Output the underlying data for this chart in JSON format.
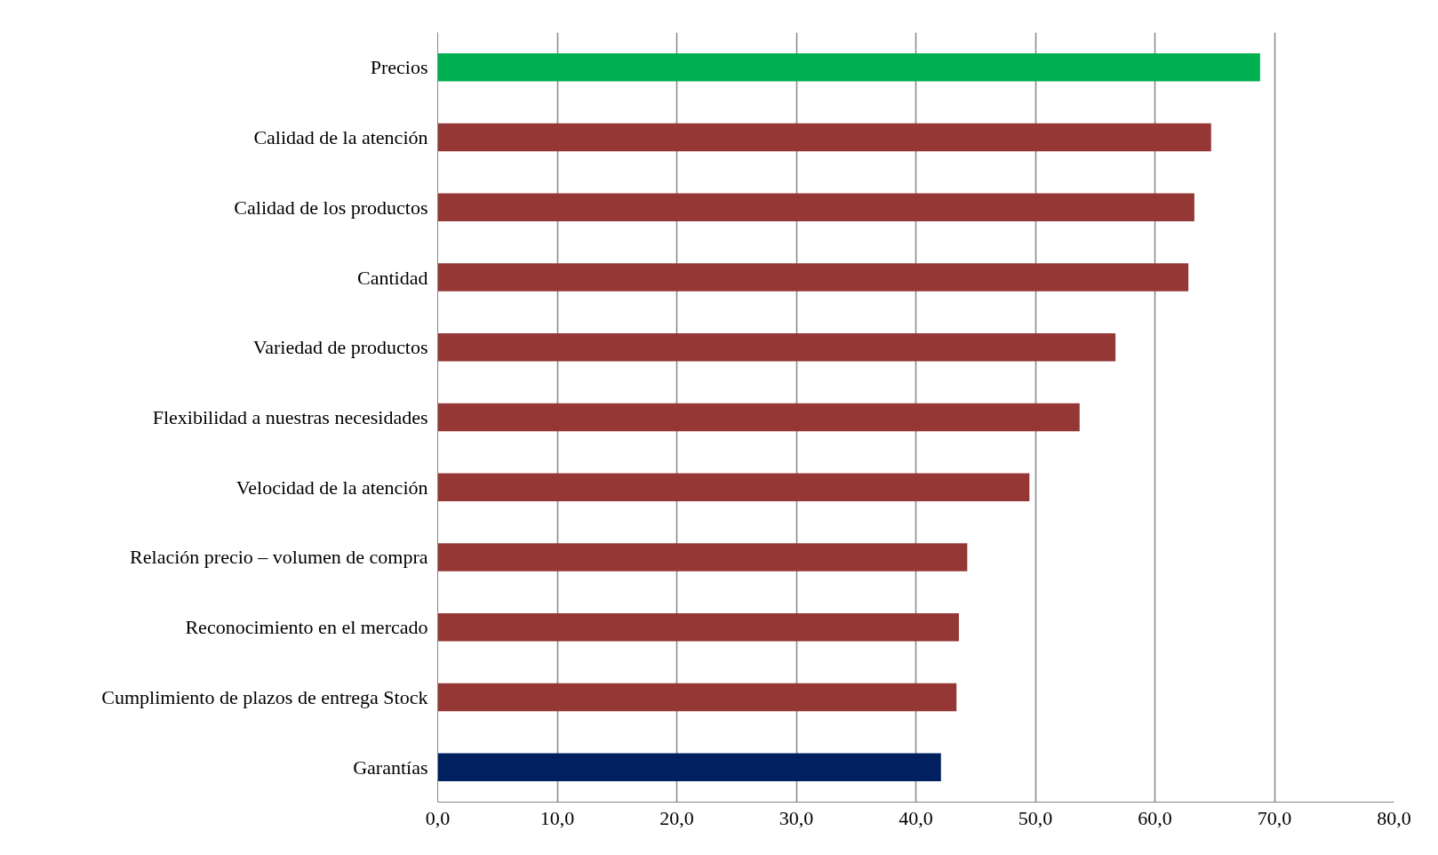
{
  "chart_data": {
    "type": "bar",
    "orientation": "horizontal",
    "categories": [
      "Precios",
      "Calidad de la atención",
      "Calidad de los productos",
      "Cantidad",
      "Variedad de productos",
      "Flexibilidad a nuestras necesidades",
      "Velocidad de la atención",
      "Relación precio – volumen de compra",
      "Reconocimiento en el mercado",
      "Cumplimiento de plazos de entrega Stock",
      "Garantías"
    ],
    "values": [
      68.8,
      64.7,
      63.3,
      62.8,
      56.7,
      53.7,
      49.5,
      44.3,
      43.6,
      43.4,
      42.1
    ],
    "colors": [
      "#00b050",
      "#953735",
      "#953735",
      "#953735",
      "#953735",
      "#953735",
      "#953735",
      "#953735",
      "#953735",
      "#953735",
      "#002060"
    ],
    "xlim": [
      0,
      80
    ],
    "xticks": [
      {
        "value": 0,
        "label": "0,0"
      },
      {
        "value": 10,
        "label": "10,0"
      },
      {
        "value": 20,
        "label": "20,0"
      },
      {
        "value": 30,
        "label": "30,0"
      },
      {
        "value": 40,
        "label": "40,0"
      },
      {
        "value": 50,
        "label": "50,0"
      },
      {
        "value": 60,
        "label": "60,0"
      },
      {
        "value": 70,
        "label": "70,0"
      },
      {
        "value": 80,
        "label": "80,0"
      }
    ],
    "grid": "x"
  }
}
